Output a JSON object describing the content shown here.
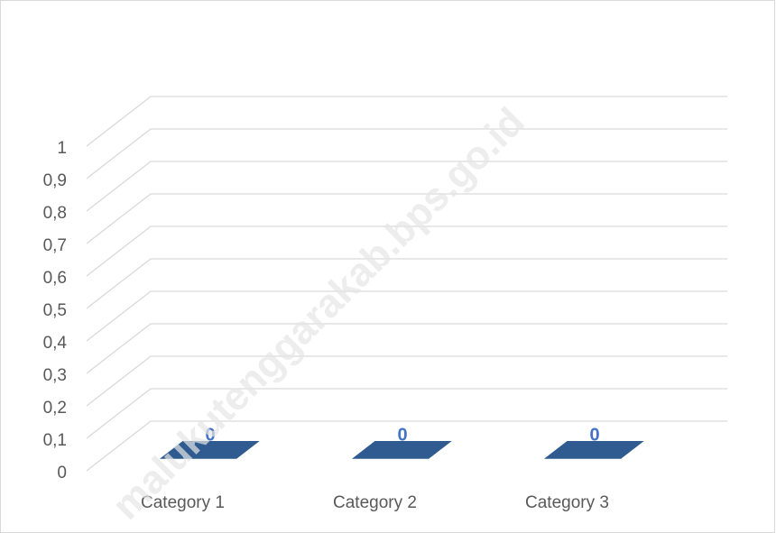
{
  "chart_data": {
    "type": "bar3d",
    "categories": [
      "Category 1",
      "Category 2",
      "Category 3"
    ],
    "values": [
      0,
      0,
      0
    ],
    "color": "#2f5b91",
    "label_color": "#4472c4",
    "ylim": [
      0,
      1
    ],
    "yticks": [
      0,
      {
        "value": 0.1,
        "label": "0,1"
      },
      {
        "value": 0.2,
        "label": "0,2"
      },
      {
        "value": 0.3,
        "label": "0,3"
      },
      {
        "value": 0.4,
        "label": "0,4"
      },
      {
        "value": 0.5,
        "label": "0,5"
      },
      {
        "value": 0.6,
        "label": "0,6"
      },
      {
        "value": 0.7,
        "label": "0,7"
      },
      {
        "value": 0.8,
        "label": "0,8"
      },
      {
        "value": 0.9,
        "label": "0,9"
      },
      1
    ],
    "grid": true,
    "watermark": "malukutenggarakab.bps.go.id"
  }
}
